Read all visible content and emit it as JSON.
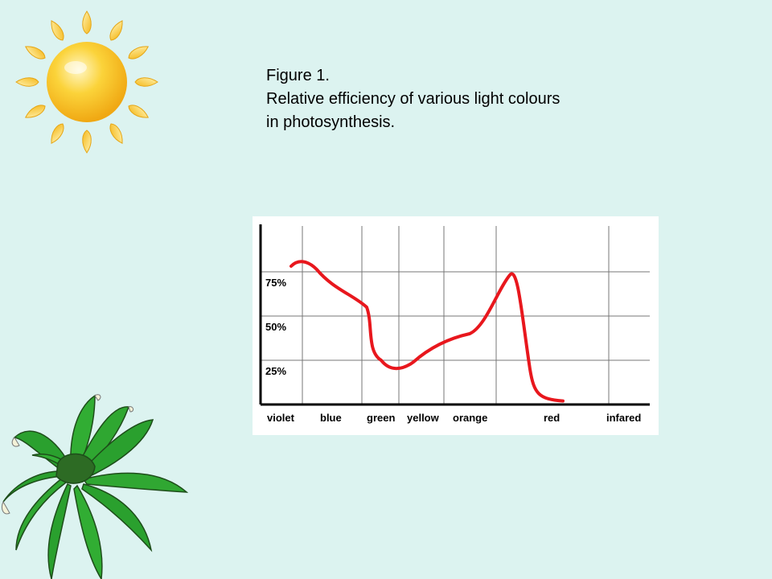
{
  "caption": {
    "line1": "Figure 1.",
    "line2": "Relative efficiency of various light colours",
    "line3": "in photosynthesis."
  },
  "colors": {
    "background": "#dcf3f0",
    "curve": "#e8171d",
    "sun": "#f7c31a",
    "plant": "#28a52c"
  },
  "icons": [
    "sun-icon",
    "plant-icon"
  ],
  "chart_data": {
    "type": "line",
    "title": "",
    "xlabel": "",
    "ylabel": "",
    "categories": [
      "violet",
      "blue",
      "green",
      "yellow",
      "orange",
      "red",
      "infared"
    ],
    "y_ticks": [
      "75%",
      "50%",
      "25%"
    ],
    "ylim": [
      0,
      100
    ],
    "grid": true,
    "series": [
      {
        "values": [
          80,
          79,
          58,
          20,
          33,
          75,
          2
        ]
      }
    ]
  }
}
